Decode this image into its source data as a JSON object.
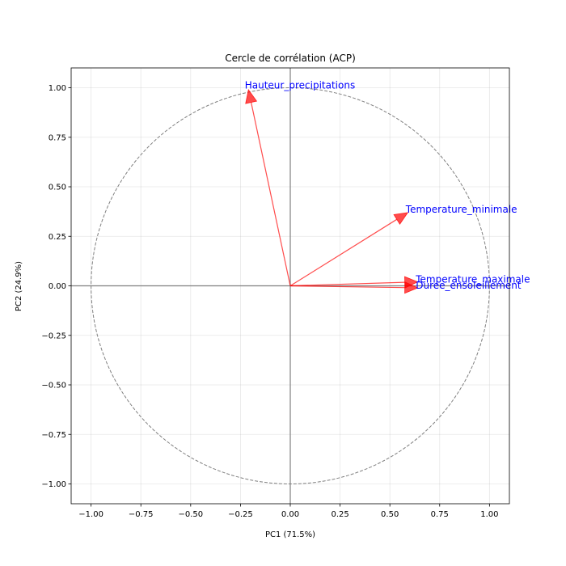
{
  "chart_data": {
    "type": "scatter",
    "title": "Cercle de corrélation (ACP)",
    "xlabel": "PC1 (71.5%)",
    "ylabel": "PC2 (24.9%)",
    "xlim": [
      -1.1,
      1.1
    ],
    "ylim": [
      -1.1,
      1.1
    ],
    "xticks": [
      -1.0,
      -0.75,
      -0.5,
      -0.25,
      0.0,
      0.25,
      0.5,
      0.75,
      1.0
    ],
    "yticks": [
      -1.0,
      -0.75,
      -0.5,
      -0.25,
      0.0,
      0.25,
      0.5,
      0.75,
      1.0
    ],
    "xtick_labels": [
      "−1.00",
      "−0.75",
      "−0.50",
      "−0.25",
      "0.00",
      "0.25",
      "0.50",
      "0.75",
      "1.00"
    ],
    "ytick_labels": [
      "−1.00",
      "−0.75",
      "−0.50",
      "−0.25",
      "0.00",
      "0.25",
      "0.50",
      "0.75",
      "1.00"
    ],
    "grid": true,
    "unit_circle": true,
    "arrow_color": "#ff0000",
    "label_color": "#0000ff",
    "variables": [
      {
        "name": "Hauteur_precipitations",
        "x": -0.21,
        "y": 0.99
      },
      {
        "name": "Temperature_minimale",
        "x": 0.59,
        "y": 0.37
      },
      {
        "name": "Temperature_maximale",
        "x": 0.64,
        "y": 0.02
      },
      {
        "name": "Duree_ensoleillement",
        "x": 0.64,
        "y": -0.01
      }
    ]
  }
}
